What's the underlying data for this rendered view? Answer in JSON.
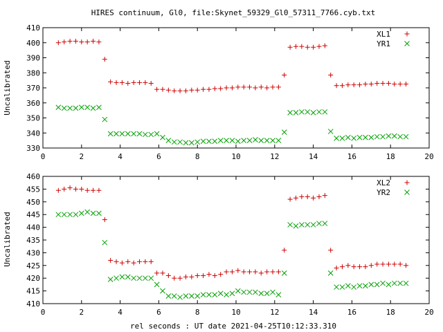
{
  "chart_data": [
    {
      "type": "scatter",
      "title": "HIRES continuum, Gl0, file:Skynet_59329_Gl0_57311_7766.cyb.txt",
      "xlabel": "",
      "ylabel": "Uncalibrated",
      "xlim": [
        0,
        20
      ],
      "ylim": [
        330,
        410
      ],
      "xticks": [
        "0",
        "2",
        "4",
        "6",
        "8",
        "10",
        "12",
        "14",
        "16",
        "18",
        "20"
      ],
      "yticks": [
        "330",
        "340",
        "350",
        "360",
        "370",
        "380",
        "390",
        "400",
        "410"
      ],
      "grid": false,
      "legend_position": "top-right",
      "series": [
        {
          "name": "XL1",
          "marker": "plus",
          "color": "#cc0000",
          "x": [
            0.8,
            1.1,
            1.4,
            1.7,
            2.0,
            2.3,
            2.6,
            2.9,
            3.2,
            3.5,
            3.8,
            4.1,
            4.4,
            4.7,
            5.0,
            5.3,
            5.6,
            5.9,
            6.2,
            6.5,
            6.8,
            7.1,
            7.4,
            7.7,
            8.0,
            8.3,
            8.6,
            8.9,
            9.2,
            9.5,
            9.8,
            10.1,
            10.4,
            10.7,
            11.0,
            11.3,
            11.6,
            11.9,
            12.2,
            12.5,
            12.8,
            13.1,
            13.4,
            13.7,
            14.0,
            14.3,
            14.6,
            14.9,
            15.2,
            15.5,
            15.8,
            16.1,
            16.4,
            16.7,
            17.0,
            17.3,
            17.6,
            17.9,
            18.2,
            18.5,
            18.8
          ],
          "y": [
            400,
            400.5,
            401,
            401,
            400.5,
            400.5,
            401,
            400.5,
            389,
            374,
            373.5,
            373.5,
            373,
            373.5,
            373.5,
            373.5,
            373,
            369,
            369,
            368.5,
            368,
            368,
            368,
            368.5,
            368.5,
            369,
            369,
            369.5,
            369.5,
            370,
            370,
            370.5,
            370.5,
            370.5,
            370,
            370.5,
            370,
            370.5,
            370.5,
            378.5,
            397,
            397.5,
            397.5,
            397,
            397,
            397.5,
            398,
            378.5,
            371.5,
            371.5,
            372,
            372,
            372,
            372.5,
            372.5,
            373,
            373,
            373,
            372.5,
            372.5,
            372.5
          ]
        },
        {
          "name": "YR1",
          "marker": "cross",
          "color": "#00a000",
          "x": [
            0.8,
            1.1,
            1.4,
            1.7,
            2.0,
            2.3,
            2.6,
            2.9,
            3.2,
            3.5,
            3.8,
            4.1,
            4.4,
            4.7,
            5.0,
            5.3,
            5.6,
            5.9,
            6.2,
            6.5,
            6.8,
            7.1,
            7.4,
            7.7,
            8.0,
            8.3,
            8.6,
            8.9,
            9.2,
            9.5,
            9.8,
            10.1,
            10.4,
            10.7,
            11.0,
            11.3,
            11.6,
            11.9,
            12.2,
            12.5,
            12.8,
            13.1,
            13.4,
            13.7,
            14.0,
            14.3,
            14.6,
            14.9,
            15.2,
            15.5,
            15.8,
            16.1,
            16.4,
            16.7,
            17.0,
            17.3,
            17.6,
            17.9,
            18.2,
            18.5,
            18.8
          ],
          "y": [
            357,
            356.5,
            356.5,
            356.5,
            357,
            357,
            356.5,
            357,
            349,
            339.5,
            339.5,
            339.5,
            339.5,
            339.5,
            339.5,
            339,
            339,
            339.5,
            337,
            335,
            334,
            334,
            333.5,
            333.5,
            334,
            334.5,
            334.5,
            334.5,
            335,
            335,
            335,
            334.5,
            335,
            335,
            335.5,
            335,
            335,
            335,
            335,
            340.5,
            353.5,
            353.5,
            354,
            354,
            353.5,
            354,
            354,
            341,
            336.5,
            336.5,
            337,
            336.5,
            337,
            337,
            337,
            337.5,
            337.5,
            338,
            338,
            337.5,
            337.5
          ]
        }
      ]
    },
    {
      "type": "scatter",
      "title": "",
      "xlabel": "rel seconds : UT date 2021-04-25T10:12:33.310",
      "ylabel": "Uncalibrated",
      "xlim": [
        0,
        20
      ],
      "ylim": [
        410,
        460
      ],
      "xticks": [
        "0",
        "2",
        "4",
        "6",
        "8",
        "10",
        "12",
        "14",
        "16",
        "18",
        "20"
      ],
      "yticks": [
        "410",
        "415",
        "420",
        "425",
        "430",
        "435",
        "440",
        "445",
        "450",
        "455",
        "460"
      ],
      "grid": false,
      "legend_position": "top-right",
      "series": [
        {
          "name": "XL2",
          "marker": "plus",
          "color": "#cc0000",
          "x": [
            0.8,
            1.1,
            1.4,
            1.7,
            2.0,
            2.3,
            2.6,
            2.9,
            3.2,
            3.5,
            3.8,
            4.1,
            4.4,
            4.7,
            5.0,
            5.3,
            5.6,
            5.9,
            6.2,
            6.5,
            6.8,
            7.1,
            7.4,
            7.7,
            8.0,
            8.3,
            8.6,
            8.9,
            9.2,
            9.5,
            9.8,
            10.1,
            10.4,
            10.7,
            11.0,
            11.3,
            11.6,
            11.9,
            12.2,
            12.5,
            12.8,
            13.1,
            13.4,
            13.7,
            14.0,
            14.3,
            14.6,
            14.9,
            15.2,
            15.5,
            15.8,
            16.1,
            16.4,
            16.7,
            17.0,
            17.3,
            17.6,
            17.9,
            18.2,
            18.5,
            18.8
          ],
          "y": [
            454.5,
            455,
            455.5,
            455,
            455,
            454.5,
            454.5,
            454.5,
            443,
            427,
            426.5,
            426,
            426.5,
            426,
            426.5,
            426.5,
            426.5,
            422,
            422,
            421,
            420,
            420,
            420.5,
            420.5,
            421,
            421,
            421.5,
            421,
            421.5,
            422.5,
            422.5,
            423,
            422.5,
            422.5,
            422.5,
            422,
            422.5,
            422.5,
            422.5,
            431,
            451,
            451.5,
            452,
            452,
            451.5,
            452,
            452.5,
            431,
            424,
            424.5,
            425,
            424.5,
            424.5,
            424.5,
            425,
            425.5,
            425.5,
            425.5,
            425.5,
            425.5,
            425
          ]
        },
        {
          "name": "YR2",
          "marker": "cross",
          "color": "#00a000",
          "x": [
            0.8,
            1.1,
            1.4,
            1.7,
            2.0,
            2.3,
            2.6,
            2.9,
            3.2,
            3.5,
            3.8,
            4.1,
            4.4,
            4.7,
            5.0,
            5.3,
            5.6,
            5.9,
            6.2,
            6.5,
            6.8,
            7.1,
            7.4,
            7.7,
            8.0,
            8.3,
            8.6,
            8.9,
            9.2,
            9.5,
            9.8,
            10.1,
            10.4,
            10.7,
            11.0,
            11.3,
            11.6,
            11.9,
            12.2,
            12.5,
            12.8,
            13.1,
            13.4,
            13.7,
            14.0,
            14.3,
            14.6,
            14.9,
            15.2,
            15.5,
            15.8,
            16.1,
            16.4,
            16.7,
            17.0,
            17.3,
            17.6,
            17.9,
            18.2,
            18.5,
            18.8
          ],
          "y": [
            445,
            445,
            445,
            445,
            445.5,
            446,
            445.5,
            445.5,
            434,
            419.5,
            420,
            420.5,
            420.5,
            420,
            420,
            420,
            420,
            417.5,
            415,
            413,
            413,
            412.5,
            413,
            413,
            413,
            413.5,
            413.5,
            413.5,
            414,
            413.5,
            414,
            415,
            414.5,
            414.5,
            414.5,
            414,
            414,
            414.5,
            413.5,
            422,
            441,
            440.5,
            441,
            441,
            441,
            441.5,
            441.5,
            422,
            416.5,
            416.5,
            417,
            416.5,
            417,
            417,
            417.5,
            417.5,
            418,
            417.5,
            418,
            418,
            418
          ]
        }
      ]
    }
  ]
}
